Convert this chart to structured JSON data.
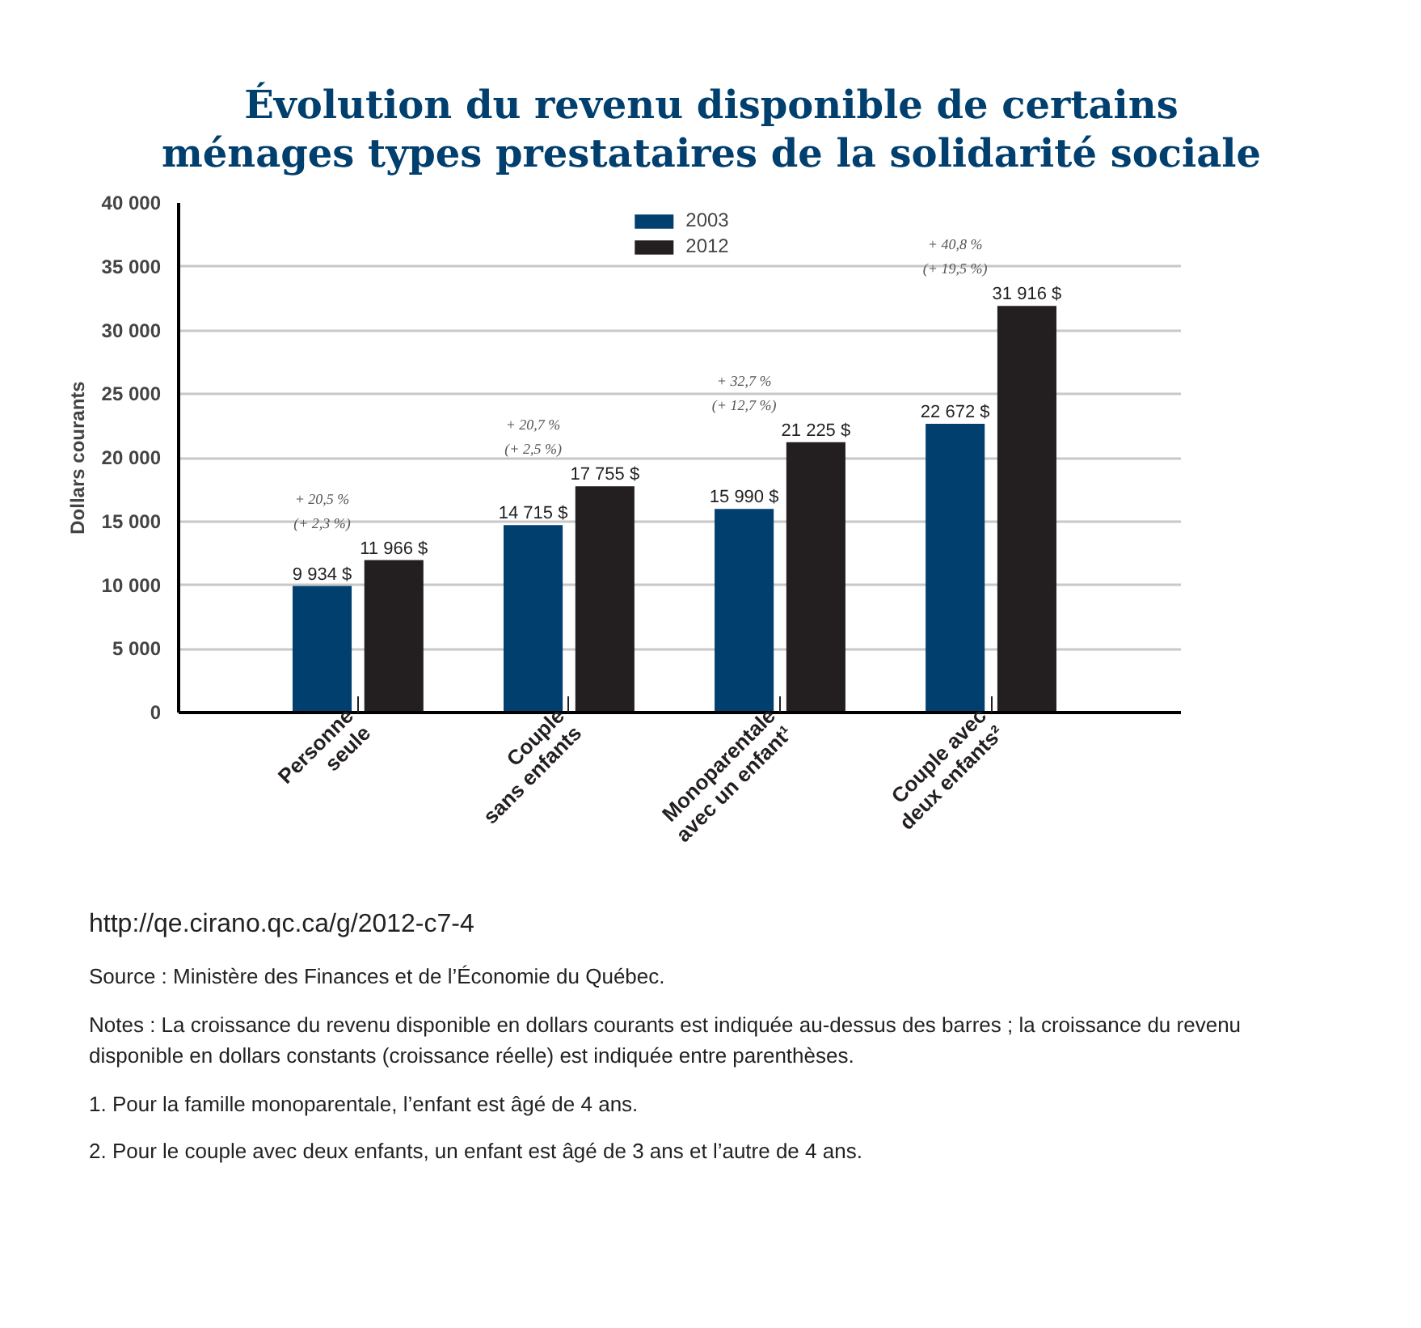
{
  "chart_data": {
    "type": "bar",
    "title": "Évolution du revenu disponible de certains ménages types prestataires de la solidarité sociale",
    "ylabel": "Dollars courants",
    "categories": [
      "Personne\nseule",
      "Couple\nsans enfants",
      "Monoparentale\navec un enfant¹",
      "Couple avec\ndeux enfants²"
    ],
    "series": [
      {
        "name": "2003",
        "color": "#003f6e",
        "values": [
          9934,
          14715,
          15990,
          22672
        ],
        "value_labels": [
          "9 934 $",
          "14 715 $",
          "15 990 $",
          "22 672 $"
        ]
      },
      {
        "name": "2012",
        "color": "#231f20",
        "values": [
          11966,
          17755,
          21225,
          31916
        ],
        "value_labels": [
          "11 966 $",
          "17 755 $",
          "21 225 $",
          "31 916 $"
        ]
      }
    ],
    "ylim": [
      0,
      40000
    ],
    "yticks": [
      {
        "value": 0,
        "label": "0"
      },
      {
        "value": 5000,
        "label": "5 000"
      },
      {
        "value": 10000,
        "label": "10 000"
      },
      {
        "value": 15000,
        "label": "15 000"
      },
      {
        "value": 20000,
        "label": "20 000"
      },
      {
        "value": 25000,
        "label": "25 000"
      },
      {
        "value": 30000,
        "label": "30 000"
      },
      {
        "value": 35000,
        "label": "35 000"
      },
      {
        "value": 40000,
        "label": "40 000"
      }
    ],
    "grid": "y",
    "legend": "top",
    "annotations": [
      "+ 20,5 %\n(+ 2,3 %)",
      "+ 20,7 %\n(+ 2,5 %)",
      "+ 32,7 %\n(+ 12,7 %)",
      "+ 40,8 %\n(+ 19,5 %)",
      "http://qe.cirano.qc.ca/g/2012-c7-4",
      "Source : Ministère des Finances et de l’Économie du Québec.",
      "Notes : La croissance du revenu disponible en dollars courants est indiquée au-dessus des barres ; la croissance du revenu disponible en dollars constants (croissance réelle) est indiquée entre parenthèses.",
      "1. Pour la famille monoparentale, l’enfant est âgé de 4 ans.",
      "2. Pour le couple avec deux enfants, un enfant est âgé de 3 ans et l’autre de 4 ans."
    ]
  }
}
